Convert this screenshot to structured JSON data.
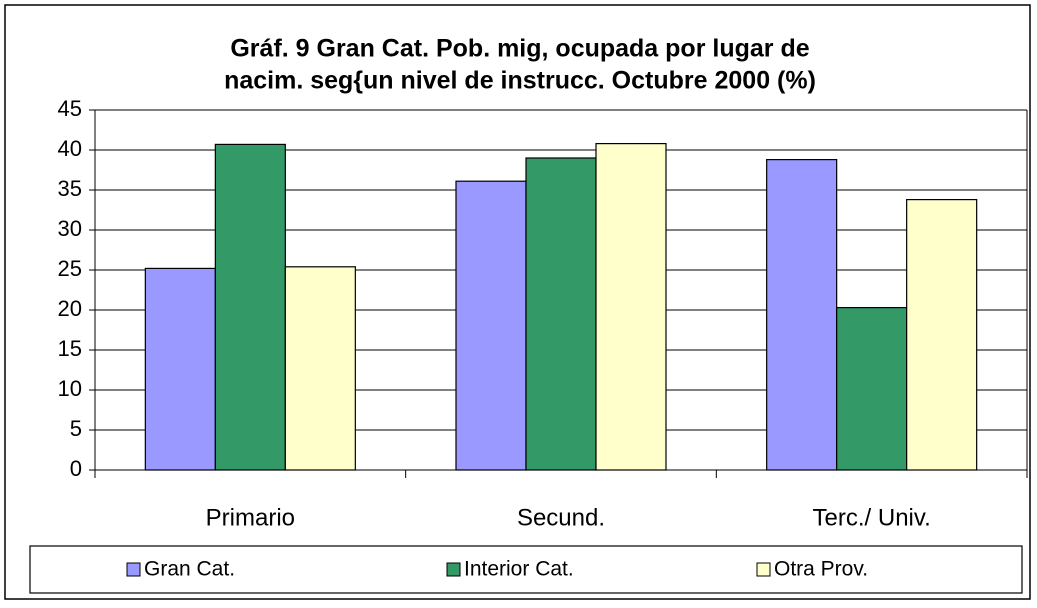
{
  "chart_data": {
    "type": "bar",
    "title": [
      "Gráf. 9 Gran Cat. Pob. mig, ocupada por lugar de",
      "nacim. seg{un nivel de instrucc. Octubre 2000 (%)"
    ],
    "categories": [
      "Primario",
      "Secund.",
      "Terc./ Univ."
    ],
    "series": [
      {
        "name": "Gran Cat.",
        "color": "#9999ff",
        "values": [
          25.2,
          36.1,
          38.8
        ]
      },
      {
        "name": "Interior Cat.",
        "color": "#339966",
        "values": [
          40.7,
          39.0,
          20.3
        ]
      },
      {
        "name": "Otra Prov.",
        "color": "#ffffcc",
        "values": [
          25.4,
          40.8,
          33.8
        ]
      }
    ],
    "ylim": [
      0,
      45
    ],
    "yticks": [
      0,
      5,
      10,
      15,
      20,
      25,
      30,
      35,
      40,
      45
    ],
    "grid": true
  }
}
